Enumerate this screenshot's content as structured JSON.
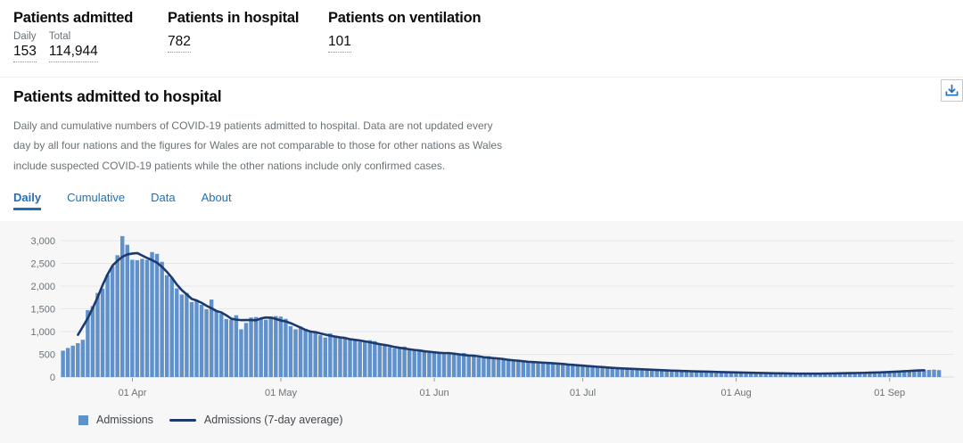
{
  "colors": {
    "accent_blue": "#1d70b8",
    "bar": "#6191ca",
    "line": "#1c3a6e",
    "text": "#0b0c0c",
    "muted_text": "#6b7276",
    "chart_bg": "#f7f7f8",
    "gridline": "#e6e7e8",
    "baseline": "#d9dadb",
    "tick": "#979b9e"
  },
  "stats": [
    {
      "title": "Patients admitted",
      "items": [
        {
          "label": "Daily",
          "value": "153"
        },
        {
          "label": "Total",
          "value": "114,944"
        }
      ]
    },
    {
      "title": "Patients in hospital",
      "items": [
        {
          "label": "",
          "value": "782"
        }
      ]
    },
    {
      "title": "Patients on ventilation",
      "items": [
        {
          "label": "",
          "value": "101"
        }
      ]
    }
  ],
  "panel": {
    "title": "Patients admitted to hospital",
    "description": "Daily and cumulative numbers of COVID-19 patients admitted to hospital. Data are not updated every day by all four nations and the figures for Wales are not comparable to those for other nations as Wales include suspected COVID-19 patients while the other nations include only confirmed cases.",
    "tabs": [
      {
        "label": "Daily",
        "active": true
      },
      {
        "label": "Cumulative",
        "active": false
      },
      {
        "label": "Data",
        "active": false
      },
      {
        "label": "About",
        "active": false
      }
    ],
    "download_icon": "download-icon"
  },
  "chart_data": {
    "type": "bar",
    "title": "Patients admitted to hospital (Daily)",
    "xlabel": "",
    "ylabel": "",
    "ylim": [
      0,
      3000
    ],
    "y_ticks": [
      0,
      500,
      1000,
      1500,
      2000,
      2500,
      3000
    ],
    "y_tick_labels": [
      "0",
      "500",
      "1,000",
      "1,500",
      "2,000",
      "2,500",
      "3,000"
    ],
    "grid": true,
    "legend_position": "bottom-left",
    "start_date": "2020-03-18",
    "x_tick_labels": [
      "01 Apr",
      "01 May",
      "01 Jun",
      "01 Jul",
      "01 Aug",
      "01 Sep"
    ],
    "x_tick_indices": [
      14,
      44,
      75,
      105,
      136,
      167
    ],
    "legend": [
      {
        "label": "Admissions",
        "type": "bar"
      },
      {
        "label": "Admissions (7-day average)",
        "type": "line"
      }
    ],
    "line_series_rule": "7-day centered moving average of Admissions",
    "series": [
      {
        "name": "Admissions",
        "values": [
          580,
          640,
          690,
          745,
          820,
          1470,
          1560,
          1850,
          1945,
          2250,
          2440,
          2680,
          3100,
          2910,
          2580,
          2570,
          2600,
          2580,
          2750,
          2710,
          2535,
          2240,
          2180,
          1950,
          1815,
          1850,
          1650,
          1685,
          1590,
          1490,
          1705,
          1455,
          1390,
          1275,
          1260,
          1360,
          1050,
          1190,
          1310,
          1320,
          1280,
          1260,
          1330,
          1340,
          1330,
          1280,
          1120,
          1050,
          1110,
          1060,
          1010,
          980,
          920,
          870,
          960,
          910,
          880,
          850,
          830,
          800,
          780,
          770,
          810,
          790,
          710,
          690,
          660,
          630,
          650,
          670,
          610,
          590,
          570,
          550,
          530,
          570,
          550,
          530,
          510,
          490,
          510,
          530,
          470,
          450,
          430,
          440,
          460,
          410,
          390,
          400,
          380,
          370,
          355,
          345,
          335,
          325,
          315,
          305,
          325,
          315,
          295,
          285,
          275,
          265,
          255,
          245,
          255,
          235,
          225,
          215,
          205,
          200,
          195,
          190,
          185,
          180,
          175,
          170,
          165,
          160,
          155,
          150,
          145,
          142,
          138,
          134,
          130,
          127,
          124,
          121,
          118,
          115,
          112,
          110,
          108,
          105,
          102,
          99,
          96,
          93,
          91,
          89,
          87,
          85,
          83,
          81,
          79,
          77,
          76,
          75,
          73,
          72,
          73,
          75,
          76,
          78,
          80,
          82,
          84,
          86,
          88,
          90,
          93,
          96,
          99,
          102,
          105,
          110,
          116,
          122,
          128,
          134,
          140,
          146,
          152,
          158,
          163,
          153
        ]
      }
    ]
  }
}
